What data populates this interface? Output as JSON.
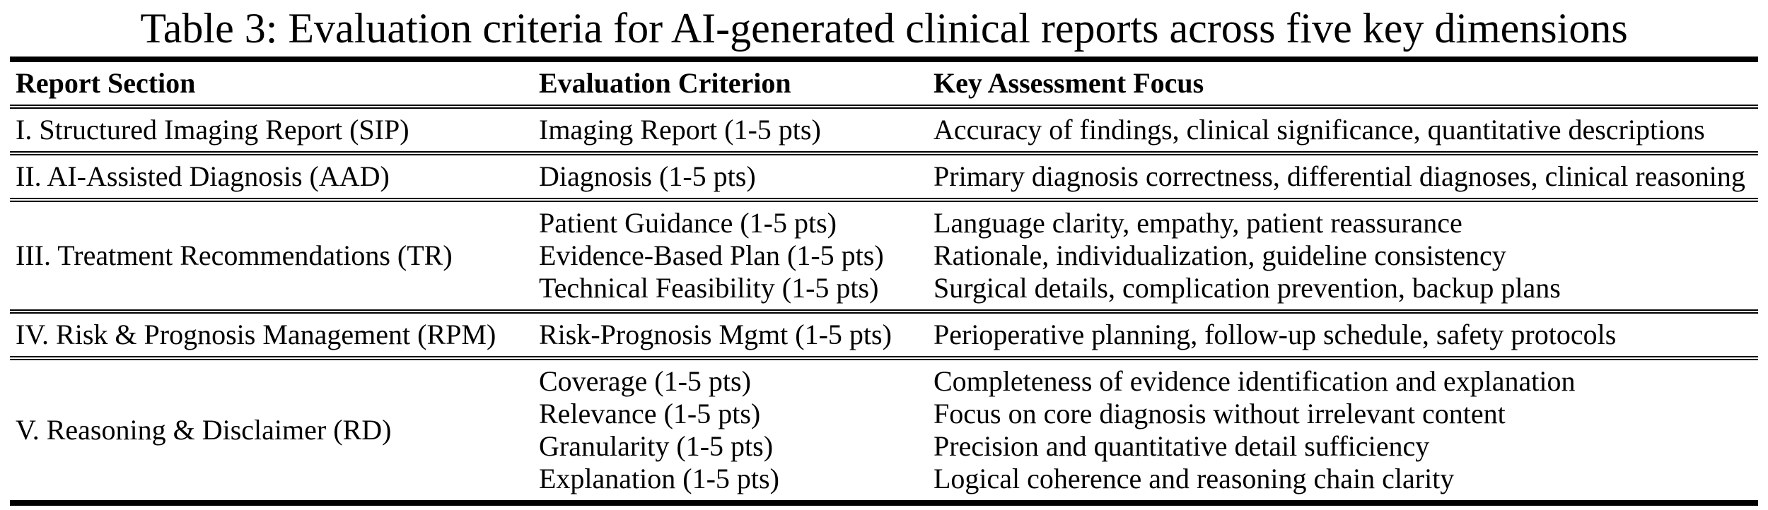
{
  "table": {
    "title": "Table 3: Evaluation criteria for AI-generated clinical reports across five key dimensions",
    "columns": [
      "Report Section",
      "Evaluation Criterion",
      "Key Assessment Focus"
    ],
    "rows": [
      {
        "section": "I. Structured Imaging Report (SIP)",
        "criteria": [
          "Imaging Report (1-5 pts)"
        ],
        "focus": [
          "Accuracy of findings, clinical significance, quantitative descriptions"
        ]
      },
      {
        "section": "II. AI-Assisted Diagnosis (AAD)",
        "criteria": [
          "Diagnosis (1-5 pts)"
        ],
        "focus": [
          "Primary diagnosis correctness, differential diagnoses, clinical reasoning"
        ]
      },
      {
        "section": "III. Treatment Recommendations (TR)",
        "criteria": [
          "Patient Guidance (1-5 pts)",
          "Evidence-Based Plan (1-5 pts)",
          "Technical Feasibility (1-5 pts)"
        ],
        "focus": [
          "Language clarity, empathy, patient reassurance",
          "Rationale, individualization, guideline consistency",
          "Surgical details, complication prevention, backup plans"
        ]
      },
      {
        "section": "IV. Risk & Prognosis Management (RPM)",
        "criteria": [
          "Risk-Prognosis Mgmt (1-5 pts)"
        ],
        "focus": [
          "Perioperative planning, follow-up schedule, safety protocols"
        ]
      },
      {
        "section": "V. Reasoning & Disclaimer (RD)",
        "criteria": [
          "Coverage (1-5 pts)",
          "Relevance (1-5 pts)",
          "Granularity (1-5 pts)",
          "Explanation (1-5 pts)"
        ],
        "focus": [
          "Completeness of evidence identification and explanation",
          "Focus on core diagnosis without irrelevant content",
          "Precision and quantitative detail sufficiency",
          "Logical coherence and reasoning chain clarity"
        ]
      }
    ]
  }
}
